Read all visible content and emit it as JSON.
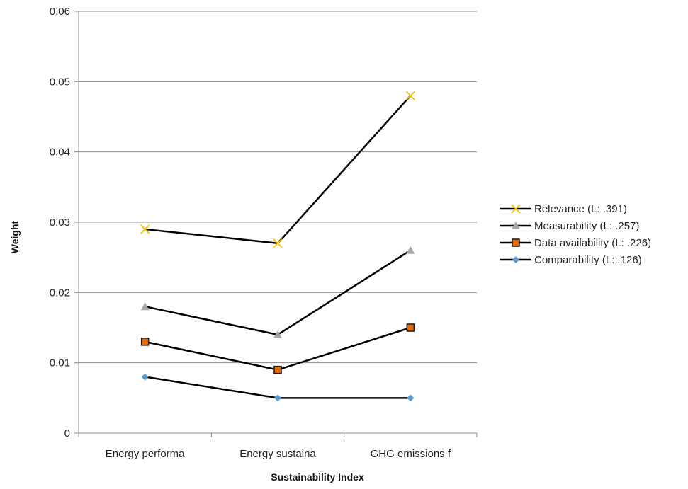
{
  "chart_data": {
    "type": "line",
    "title": "",
    "xlabel": "Sustainability  Index",
    "ylabel": "Weight",
    "categories": [
      "Energy performa",
      "Energy sustaina",
      "GHG emissions f"
    ],
    "ylim": [
      0,
      0.06
    ],
    "yticks": [
      0,
      0.01,
      0.02,
      0.03,
      0.04,
      0.05,
      0.06
    ],
    "ytick_labels": [
      "0",
      "0.01",
      "0.02",
      "0.03",
      "0.04",
      "0.05",
      "0.06"
    ],
    "grid": "horizontal",
    "legend_position": "right",
    "line_color": "#000000",
    "series": [
      {
        "name": "Relevance (L: .391)",
        "values": [
          0.029,
          0.027,
          0.048
        ],
        "marker": "x",
        "marker_color": "#f2c200"
      },
      {
        "name": "Measurability (L: .257)",
        "values": [
          0.018,
          0.014,
          0.026
        ],
        "marker": "triangle",
        "marker_color": "#a6a6a6"
      },
      {
        "name": "Data availability (L: .226)",
        "values": [
          0.013,
          0.009,
          0.015
        ],
        "marker": "square",
        "marker_color": "#e46c0a"
      },
      {
        "name": "Comparability (L: .126)",
        "values": [
          0.008,
          0.005,
          0.005
        ],
        "marker": "diamond",
        "marker_color": "#5b9bd5"
      }
    ]
  }
}
